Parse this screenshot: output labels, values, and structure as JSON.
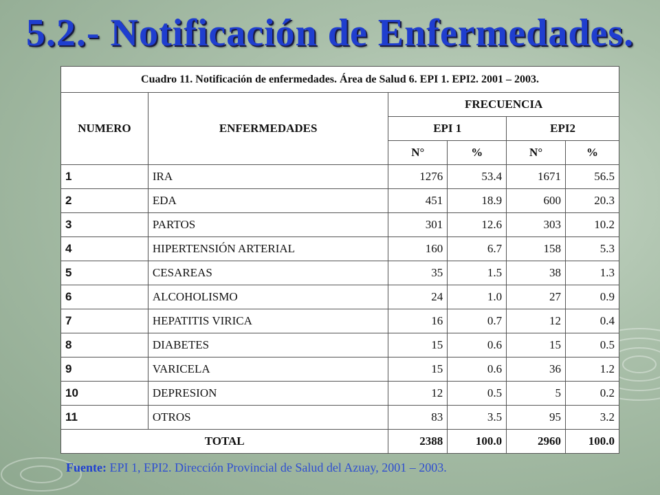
{
  "title": "5.2.- Notificación de Enfermedades.",
  "table": {
    "caption": "Cuadro 11. Notificación de enfermedades.  Área de Salud 6. EPI 1. EPI2. 2001 – 2003.",
    "headers": {
      "numero": "NUMERO",
      "enfermedades": "ENFERMEDADES",
      "frecuencia": "FRECUENCIA",
      "epi1": "EPI 1",
      "epi2": "EPI2",
      "n1": "N°",
      "p1": "%",
      "n2": "N°",
      "p2": "%"
    },
    "rows": [
      {
        "num": "1",
        "name": "IRA",
        "epi1_n": "1276",
        "epi1_p": "53.4",
        "epi2_n": "1671",
        "epi2_p": "56.5"
      },
      {
        "num": "2",
        "name": "EDA",
        "epi1_n": "451",
        "epi1_p": "18.9",
        "epi2_n": "600",
        "epi2_p": "20.3"
      },
      {
        "num": "3",
        "name": "PARTOS",
        "epi1_n": "301",
        "epi1_p": "12.6",
        "epi2_n": "303",
        "epi2_p": "10.2"
      },
      {
        "num": "4",
        "name": "HIPERTENSIÓN ARTERIAL",
        "epi1_n": "160",
        "epi1_p": "6.7",
        "epi2_n": "158",
        "epi2_p": "5.3"
      },
      {
        "num": "5",
        "name": "CESAREAS",
        "epi1_n": "35",
        "epi1_p": "1.5",
        "epi2_n": "38",
        "epi2_p": "1.3"
      },
      {
        "num": "6",
        "name": "ALCOHOLISMO",
        "epi1_n": "24",
        "epi1_p": "1.0",
        "epi2_n": "27",
        "epi2_p": "0.9"
      },
      {
        "num": "7",
        "name": "HEPATITIS VIRICA",
        "epi1_n": "16",
        "epi1_p": "0.7",
        "epi2_n": "12",
        "epi2_p": "0.4"
      },
      {
        "num": "8",
        "name": "DIABETES",
        "epi1_n": "15",
        "epi1_p": "0.6",
        "epi2_n": "15",
        "epi2_p": "0.5"
      },
      {
        "num": "9",
        "name": "VARICELA",
        "epi1_n": "15",
        "epi1_p": "0.6",
        "epi2_n": "36",
        "epi2_p": "1.2"
      },
      {
        "num": "10",
        "name": "DEPRESION",
        "epi1_n": "12",
        "epi1_p": "0.5",
        "epi2_n": "5",
        "epi2_p": "0.2"
      },
      {
        "num": "11",
        "name": "OTROS",
        "epi1_n": "83",
        "epi1_p": "3.5",
        "epi2_n": "95",
        "epi2_p": "3.2"
      }
    ],
    "total": {
      "label": "TOTAL",
      "epi1_n": "2388",
      "epi1_p": "100.0",
      "epi2_n": "2960",
      "epi2_p": "100.0"
    }
  },
  "source": {
    "label": "Fuente:",
    "text": " EPI 1, EPI2. Dirección Provincial de Salud del Azuay, 2001 – 2003."
  },
  "colors": {
    "title": "#1f3ecf",
    "background": "#a9bfa9",
    "source_text": "#2f4fd0"
  }
}
